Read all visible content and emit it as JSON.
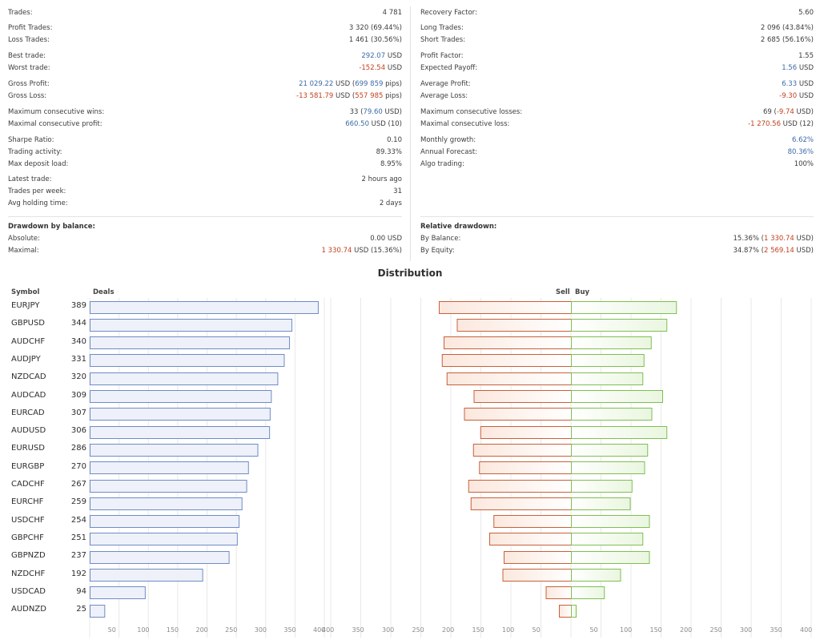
{
  "stats": {
    "left": [
      {
        "label": "Trades:",
        "value": "4 781"
      },
      {
        "label": "Profit Trades:",
        "value": "3 320 (69.44%)"
      },
      {
        "label": "Loss Trades:",
        "value": "1 461 (30.56%)"
      },
      {
        "label": "Best trade:",
        "value_parts": [
          [
            "292.07",
            "blue"
          ],
          [
            " USD",
            ""
          ]
        ]
      },
      {
        "label": "Worst trade:",
        "value_parts": [
          [
            "-152.54",
            "red"
          ],
          [
            " USD",
            ""
          ]
        ]
      },
      {
        "label": "Gross Profit:",
        "value_parts": [
          [
            "21 029.22",
            "blue"
          ],
          [
            " USD (",
            ""
          ],
          [
            "699 859",
            "blue"
          ],
          [
            " pips)",
            ""
          ]
        ]
      },
      {
        "label": "Gross Loss:",
        "value_parts": [
          [
            "-13 581.79",
            "red"
          ],
          [
            " USD (",
            ""
          ],
          [
            "557 985",
            "red"
          ],
          [
            " pips)",
            ""
          ]
        ]
      },
      {
        "label": "Maximum consecutive wins:",
        "value_parts": [
          [
            "33 (",
            ""
          ],
          [
            "79.60",
            "blue"
          ],
          [
            " USD)",
            ""
          ]
        ]
      },
      {
        "label": "Maximal consecutive profit:",
        "value_parts": [
          [
            "660.50",
            "blue"
          ],
          [
            " USD (10)",
            ""
          ]
        ]
      },
      {
        "label": "Sharpe Ratio:",
        "value": "0.10"
      },
      {
        "label": "Trading activity:",
        "value": "89.33%"
      },
      {
        "label": "Max deposit load:",
        "value": "8.95%"
      },
      {
        "label": "Latest trade:",
        "value": "2 hours ago"
      },
      {
        "label": "Trades per week:",
        "value": "31"
      },
      {
        "label": "Avg holding time:",
        "value": "2 days"
      }
    ],
    "right": [
      {
        "label": "Recovery Factor:",
        "value": "5.60"
      },
      {
        "label": "Long Trades:",
        "value": "2 096 (43.84%)"
      },
      {
        "label": "Short Trades:",
        "value": "2 685 (56.16%)"
      },
      {
        "label": "Profit Factor:",
        "value": "1.55"
      },
      {
        "label": "Expected Payoff:",
        "value_parts": [
          [
            "1.56",
            "blue"
          ],
          [
            " USD",
            ""
          ]
        ]
      },
      {
        "label": "Average Profit:",
        "value_parts": [
          [
            "6.33",
            "blue"
          ],
          [
            " USD",
            ""
          ]
        ]
      },
      {
        "label": "Average Loss:",
        "value_parts": [
          [
            "-9.30",
            "red"
          ],
          [
            " USD",
            ""
          ]
        ]
      },
      {
        "label": "Maximum consecutive losses:",
        "value_parts": [
          [
            "69 (",
            ""
          ],
          [
            "-9.74",
            "red"
          ],
          [
            " USD)",
            ""
          ]
        ]
      },
      {
        "label": "Maximal consecutive loss:",
        "value_parts": [
          [
            "-1 270.56",
            "red"
          ],
          [
            " USD (12)",
            ""
          ]
        ]
      },
      {
        "label": "Monthly growth:",
        "value_parts": [
          [
            "6.62%",
            "blue"
          ]
        ]
      },
      {
        "label": "Annual Forecast:",
        "value_parts": [
          [
            "80.36%",
            "blue"
          ]
        ]
      },
      {
        "label": "Algo trading:",
        "value": "100%"
      }
    ],
    "drawdown_balance": {
      "title": "Drawdown by balance:",
      "rows": [
        {
          "label": "Absolute:",
          "value": "0.00 USD"
        },
        {
          "label": "Maximal:",
          "value_parts": [
            [
              "1 330.74",
              "red"
            ],
            [
              " USD (15.36%)",
              ""
            ]
          ]
        }
      ]
    },
    "relative_drawdown": {
      "title": "Relative drawdown:",
      "rows": [
        {
          "label": "By Balance:",
          "value_parts": [
            [
              "15.36% (",
              ""
            ],
            [
              "1 330.74",
              "red"
            ],
            [
              " USD)",
              ""
            ]
          ]
        },
        {
          "label": "By Equity:",
          "value_parts": [
            [
              "34.87% (",
              ""
            ],
            [
              "2 569.14",
              "red"
            ],
            [
              " USD)",
              ""
            ]
          ]
        }
      ]
    }
  },
  "distribution": {
    "title": "Distribution",
    "headers": {
      "symbol": "Symbol",
      "deals": "Deals",
      "sell": "Sell",
      "buy": "Buy"
    },
    "colors": {
      "deals_stroke": "#6f8cc5",
      "deals_fill": "#eef1fa",
      "sell_stroke": "#c8603a",
      "sell_fill": "#fbe8de",
      "buy_stroke": "#7fbf52",
      "buy_fill": "#eaf6e0"
    }
  },
  "chart_data": {
    "type": "bar",
    "categories": [
      "EURJPY",
      "GBPUSD",
      "AUDCHF",
      "AUDJPY",
      "NZDCAD",
      "AUDCAD",
      "EURCAD",
      "AUDUSD",
      "EURUSD",
      "EURGBP",
      "CADCHF",
      "EURCHF",
      "USDCHF",
      "GBPCHF",
      "GBPNZD",
      "NZDCHF",
      "USDCAD",
      "AUDNZD"
    ],
    "series": [
      {
        "name": "Deals",
        "values": [
          389,
          344,
          340,
          331,
          320,
          309,
          307,
          306,
          286,
          270,
          267,
          259,
          254,
          251,
          237,
          192,
          94,
          25
        ]
      },
      {
        "name": "Sell",
        "values": [
          220,
          190,
          212,
          215,
          207,
          162,
          178,
          151,
          163,
          153,
          171,
          167,
          129,
          136,
          112,
          114,
          42,
          20
        ]
      },
      {
        "name": "Buy",
        "values": [
          175,
          159,
          133,
          121,
          119,
          152,
          134,
          159,
          127,
          122,
          101,
          98,
          130,
          119,
          130,
          82,
          55,
          8
        ]
      }
    ],
    "deals_axis": {
      "ticks": [
        50,
        100,
        150,
        200,
        250,
        300,
        350,
        400
      ],
      "range": [
        0,
        400
      ]
    },
    "sellbuy_axis": {
      "sell_ticks": [
        400,
        350,
        300,
        250,
        200,
        150,
        100,
        50
      ],
      "buy_ticks": [
        50,
        100,
        150,
        200,
        250,
        300,
        350,
        400
      ],
      "range": [
        -400,
        400
      ]
    }
  }
}
